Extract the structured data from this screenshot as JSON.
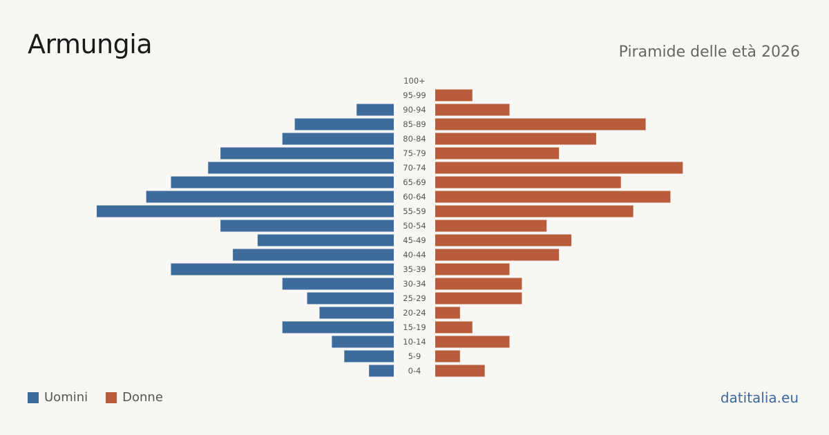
{
  "header": {
    "title": "Armungia",
    "subtitle": "Piramide delle età 2026"
  },
  "legend": {
    "men_label": "Uomini",
    "women_label": "Donne"
  },
  "brand": "datitalia.eu",
  "colors": {
    "men": "#3d6b9c",
    "women": "#b85c3c"
  },
  "chart_data": {
    "type": "bar",
    "orientation": "horizontal-pyramid",
    "categories": [
      "100+",
      "95-99",
      "90-94",
      "85-89",
      "80-84",
      "75-79",
      "70-74",
      "65-69",
      "60-64",
      "55-59",
      "50-54",
      "45-49",
      "40-44",
      "35-39",
      "30-34",
      "25-29",
      "20-24",
      "15-19",
      "10-14",
      "5-9",
      "0-4"
    ],
    "series": [
      {
        "name": "Uomini",
        "side": "left",
        "values": [
          0,
          0,
          3,
          8,
          9,
          14,
          15,
          18,
          20,
          24,
          14,
          11,
          13,
          18,
          9,
          7,
          6,
          9,
          5,
          4,
          2
        ]
      },
      {
        "name": "Donne",
        "side": "right",
        "values": [
          0,
          3,
          6,
          17,
          13,
          10,
          20,
          15,
          19,
          16,
          9,
          11,
          10,
          6,
          7,
          7,
          2,
          3,
          6,
          2,
          4
        ]
      }
    ]
  }
}
